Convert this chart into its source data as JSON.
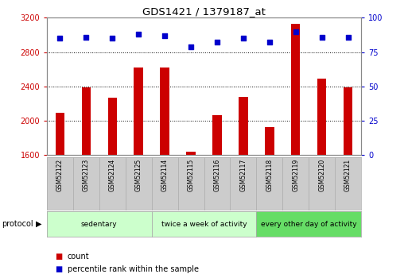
{
  "title": "GDS1421 / 1379187_at",
  "samples": [
    "GSM52122",
    "GSM52123",
    "GSM52124",
    "GSM52125",
    "GSM52114",
    "GSM52115",
    "GSM52116",
    "GSM52117",
    "GSM52118",
    "GSM52119",
    "GSM52120",
    "GSM52121"
  ],
  "counts": [
    2090,
    2390,
    2270,
    2620,
    2620,
    1640,
    2060,
    2280,
    1920,
    3130,
    2490,
    2390
  ],
  "percentile_ranks": [
    85,
    86,
    85,
    88,
    87,
    79,
    82,
    85,
    82,
    90,
    86,
    86
  ],
  "ylim_left": [
    1600,
    3200
  ],
  "ylim_right": [
    0,
    100
  ],
  "yticks_left": [
    1600,
    2000,
    2400,
    2800,
    3200
  ],
  "yticks_right": [
    0,
    25,
    50,
    75,
    100
  ],
  "bar_color": "#cc0000",
  "dot_color": "#0000cc",
  "bar_width": 0.35,
  "groups": [
    {
      "label": "sedentary",
      "start": 0,
      "end": 4,
      "color": "#ccffcc"
    },
    {
      "label": "twice a week of activity",
      "start": 4,
      "end": 8,
      "color": "#ccffcc"
    },
    {
      "label": "every other day of activity",
      "start": 8,
      "end": 12,
      "color": "#66dd66"
    }
  ],
  "protocol_label": "protocol",
  "legend_items": [
    {
      "label": "count",
      "color": "#cc0000"
    },
    {
      "label": "percentile rank within the sample",
      "color": "#0000cc"
    }
  ],
  "bg_color": "#ffffff",
  "plot_bg_color": "#ffffff",
  "tick_color_left": "#cc0000",
  "tick_color_right": "#0000cc",
  "label_box_color": "#cccccc",
  "figsize": [
    5.13,
    3.45
  ],
  "dpi": 100
}
